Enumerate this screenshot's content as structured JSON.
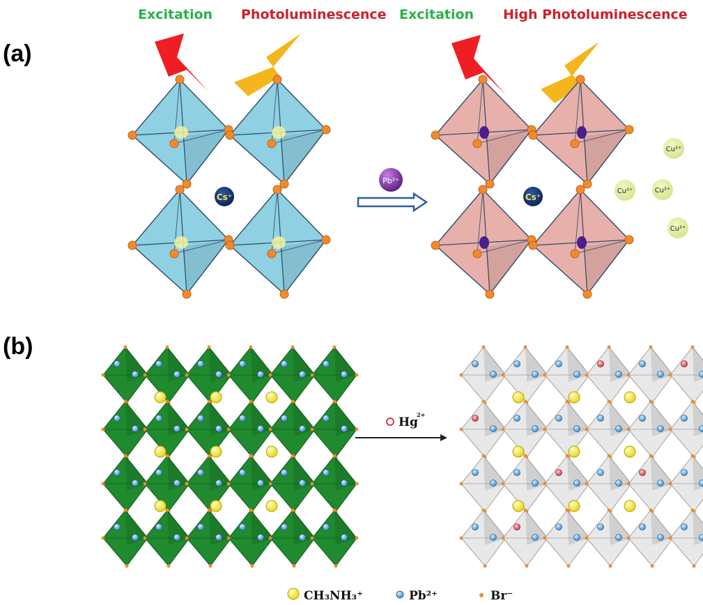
{
  "panels": {
    "a": {
      "label": "(a)",
      "left_excitation": "Excitation",
      "left_pl": "Photoluminescence",
      "right_excitation": "Excitation",
      "right_pl": "High Photoluminescence",
      "center_cation_left": "Cs⁺",
      "center_cation_right": "Cs⁺",
      "reagent": "Pb²⁺",
      "released_ions": [
        "Cu²⁺",
        "Cu²⁺",
        "Cu²⁺",
        "Cu²⁺"
      ]
    },
    "b": {
      "label": "(b)",
      "reagent": "Hg",
      "reagent_charge": "2+"
    }
  },
  "legend": [
    {
      "symbol": "yellow-sphere",
      "label": "CH₃NH₃⁺"
    },
    {
      "symbol": "blue-sphere",
      "label": "Pb²⁺"
    },
    {
      "symbol": "orange-dot",
      "label": "Br⁻"
    }
  ],
  "colors": {
    "green_text": "#2bb14c",
    "red_text": "#d01e2a",
    "cyan_octahedron": "#8fd0e2",
    "pink_octahedron": "#e7b0aa",
    "green_octahedron": "#1f8a2e",
    "grey_octahedron": "#e8e8e8",
    "orange_atom": "#f08a2c",
    "yellow_atom": "#f3ec47",
    "blue_atom": "#5aa9dc",
    "red_atom": "#e0505e"
  }
}
